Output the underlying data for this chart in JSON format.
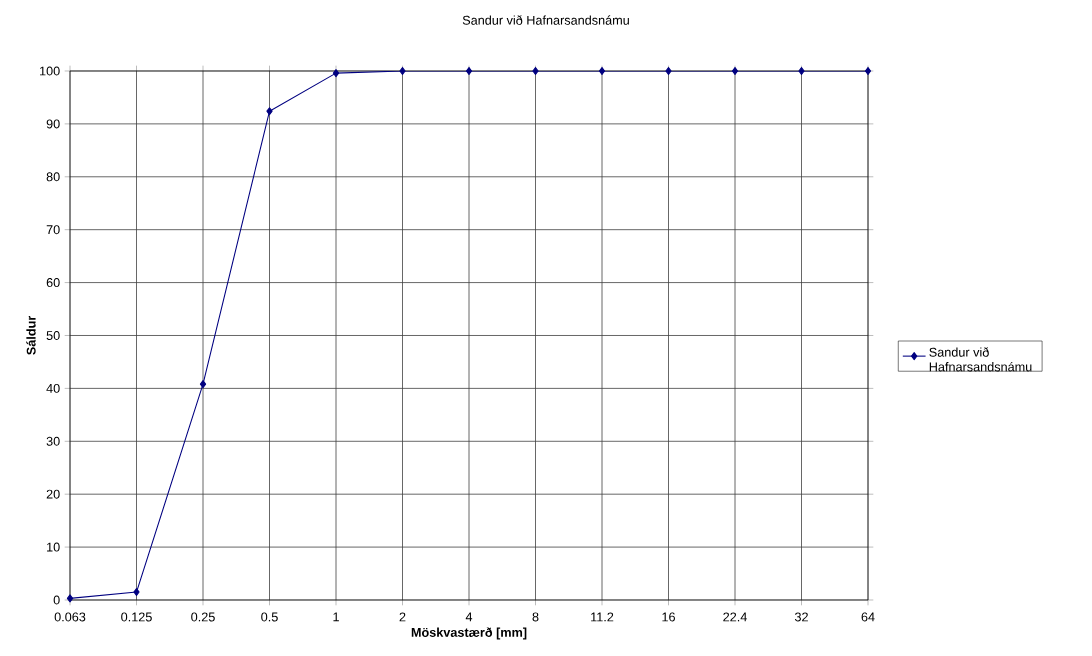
{
  "chart_data": {
    "type": "line",
    "title": "Sandur við Hafnarsandsnámu",
    "xlabel": "Möskvastærð [mm]",
    "ylabel": "Sáldur",
    "categories": [
      "0.063",
      "0.125",
      "0.25",
      "0.5",
      "1",
      "2",
      "4",
      "8",
      "11.2",
      "16",
      "22.4",
      "32",
      "64"
    ],
    "series": [
      {
        "name": "Sandur við Hafnarsandsnámu",
        "color": "#000080",
        "values": [
          0.3,
          1.5,
          40.8,
          92.4,
          99.6,
          100,
          100,
          100,
          100,
          100,
          100,
          100,
          100
        ]
      }
    ],
    "ylim": [
      0,
      100
    ],
    "yticks": [
      0,
      10,
      20,
      30,
      40,
      50,
      60,
      70,
      80,
      90,
      100
    ],
    "grid": true,
    "legend": "right",
    "marker": "diamond",
    "line_style": "solid"
  }
}
